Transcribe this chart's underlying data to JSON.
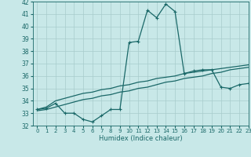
{
  "title": "",
  "xlabel": "Humidex (Indice chaleur)",
  "xlim": [
    -0.5,
    23
  ],
  "ylim": [
    32,
    42
  ],
  "xticks": [
    0,
    1,
    2,
    3,
    4,
    5,
    6,
    7,
    8,
    9,
    10,
    11,
    12,
    13,
    14,
    15,
    16,
    17,
    18,
    19,
    20,
    21,
    22,
    23
  ],
  "yticks": [
    32,
    33,
    34,
    35,
    36,
    37,
    38,
    39,
    40,
    41,
    42
  ],
  "bg_color": "#c8e8e8",
  "line_color": "#1a6868",
  "grid_color": "#a8cccc",
  "line1_x": [
    0,
    1,
    2,
    3,
    4,
    5,
    6,
    7,
    8,
    9,
    10,
    11,
    12,
    13,
    14,
    15,
    16,
    17,
    18,
    19,
    20,
    21,
    22,
    23
  ],
  "line1_y": [
    33.3,
    33.4,
    33.8,
    33.0,
    33.0,
    32.5,
    32.3,
    32.8,
    33.3,
    33.3,
    38.7,
    38.8,
    41.3,
    40.7,
    41.8,
    41.2,
    36.2,
    36.4,
    36.5,
    36.5,
    35.1,
    35.0,
    35.3,
    35.4
  ],
  "line2_x": [
    0,
    1,
    2,
    3,
    4,
    5,
    6,
    7,
    8,
    9,
    10,
    11,
    12,
    13,
    14,
    15,
    16,
    17,
    18,
    19,
    20,
    21,
    22,
    23
  ],
  "line2_y": [
    33.3,
    33.5,
    34.0,
    34.2,
    34.4,
    34.6,
    34.7,
    34.9,
    35.0,
    35.2,
    35.3,
    35.5,
    35.6,
    35.8,
    35.9,
    36.0,
    36.2,
    36.3,
    36.4,
    36.5,
    36.6,
    36.7,
    36.8,
    36.9
  ],
  "line3_x": [
    0,
    1,
    2,
    3,
    4,
    5,
    6,
    7,
    8,
    9,
    10,
    11,
    12,
    13,
    14,
    15,
    16,
    17,
    18,
    19,
    20,
    21,
    22,
    23
  ],
  "line3_y": [
    33.2,
    33.3,
    33.5,
    33.7,
    33.9,
    34.1,
    34.2,
    34.4,
    34.5,
    34.7,
    34.8,
    35.0,
    35.1,
    35.3,
    35.5,
    35.6,
    35.8,
    35.9,
    36.0,
    36.2,
    36.3,
    36.5,
    36.6,
    36.7
  ]
}
